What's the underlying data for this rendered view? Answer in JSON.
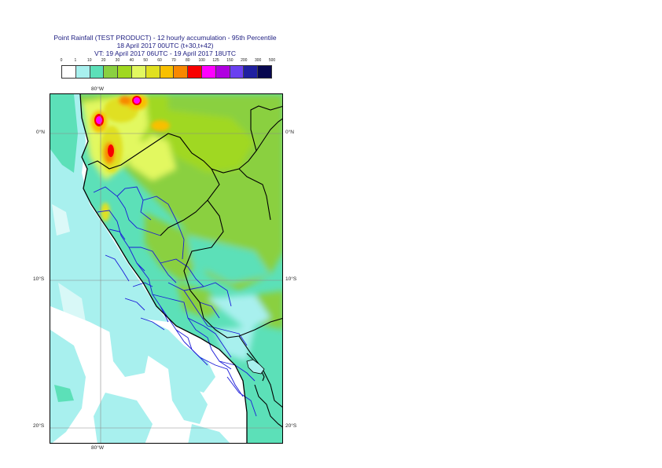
{
  "header": {
    "line1": "Point Rainfall (TEST PRODUCT) - 12 hourly accumulation - 95th Percentile",
    "line2": "18 April 2017 00UTC (t+30,t+42)",
    "line3": "VT: 19 April 2017 06UTC - 19 April 2017 18UTC"
  },
  "legend": {
    "ticks": [
      "0",
      "1",
      "10",
      "20",
      "30",
      "40",
      "50",
      "60",
      "70",
      "80",
      "100",
      "125",
      "150",
      "200",
      "300",
      "500"
    ],
    "colors": [
      "#ffffff",
      "#a8f0ee",
      "#5ce0b8",
      "#8ad040",
      "#a0d820",
      "#e2f860",
      "#e0e020",
      "#f8c000",
      "#f88800",
      "#f80000",
      "#ff00ff",
      "#b000e0",
      "#6a40f0",
      "#2020a0",
      "#080850"
    ]
  },
  "map": {
    "lat_labels": {
      "n0": "0°N",
      "s10": "10°S",
      "s20": "20°S"
    },
    "lon_label_top": "80°W",
    "lon_label_bottom": "80°W"
  }
}
